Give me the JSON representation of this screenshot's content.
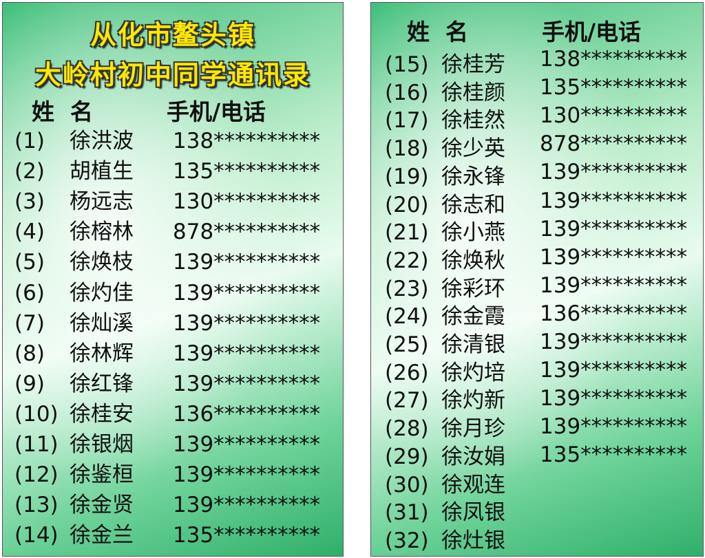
{
  "left": {
    "title": [
      "从化市鳌头镇",
      "大岭村初中同学通讯录"
    ],
    "header": {
      "name": "姓  名",
      "phone": "手机/电话"
    },
    "rows": [
      {
        "no": "(1)",
        "name": "徐洪波",
        "phone": "138**********"
      },
      {
        "no": "(2)",
        "name": "胡植生",
        "phone": "135**********"
      },
      {
        "no": "(3)",
        "name": "杨远志",
        "phone": "130**********"
      },
      {
        "no": "(4)",
        "name": "徐榕林",
        "phone": "878**********"
      },
      {
        "no": "(5)",
        "name": "徐焕枝",
        "phone": "139**********"
      },
      {
        "no": "(6)",
        "name": "徐灼佳",
        "phone": "139**********"
      },
      {
        "no": "(7)",
        "name": "徐灿溪",
        "phone": "139**********"
      },
      {
        "no": "(8)",
        "name": "徐林辉",
        "phone": "139**********"
      },
      {
        "no": "(9)",
        "name": "徐红锋",
        "phone": "139**********"
      },
      {
        "no": "(10)",
        "name": "徐桂安",
        "phone": "136**********"
      },
      {
        "no": "(11)",
        "name": "徐银烟",
        "phone": "139**********"
      },
      {
        "no": "(12)",
        "name": "徐鉴桓",
        "phone": "139**********"
      },
      {
        "no": "(13)",
        "name": "徐金贤",
        "phone": "139**********"
      },
      {
        "no": "(14)",
        "name": "徐金兰",
        "phone": "135**********"
      }
    ]
  },
  "right": {
    "header": {
      "name": "姓  名",
      "phone": "手机/电话"
    },
    "names": [
      {
        "no": "(15)",
        "name": "徐桂芳"
      },
      {
        "no": "(16)",
        "name": "徐桂颜"
      },
      {
        "no": "(17)",
        "name": "徐桂然"
      },
      {
        "no": "(18)",
        "name": "徐少英"
      },
      {
        "no": "(19)",
        "name": "徐永锋"
      },
      {
        "no": "(20)",
        "name": "徐志和"
      },
      {
        "no": "(21)",
        "name": "徐小燕"
      },
      {
        "no": "(22)",
        "name": "徐焕秋"
      },
      {
        "no": "(23)",
        "name": "徐彩环"
      },
      {
        "no": "(24)",
        "name": "徐金霞"
      },
      {
        "no": "(25)",
        "name": "徐清银"
      },
      {
        "no": "(26)",
        "name": "徐灼培"
      },
      {
        "no": "(27)",
        "name": "徐灼新"
      },
      {
        "no": "(28)",
        "name": "徐月珍"
      },
      {
        "no": "(29)",
        "name": "徐汝娟"
      },
      {
        "no": "(30)",
        "name": "徐观连"
      },
      {
        "no": "(31)",
        "name": "徐凤银"
      },
      {
        "no": "(32)",
        "name": "徐灶银"
      }
    ],
    "phones": [
      "138**********",
      "135**********",
      "130**********",
      "878**********",
      "139**********",
      "139**********",
      "139**********",
      "139**********",
      "139**********",
      "136**********",
      "139**********",
      "139**********",
      "139**********",
      "139**********",
      "135**********"
    ]
  }
}
